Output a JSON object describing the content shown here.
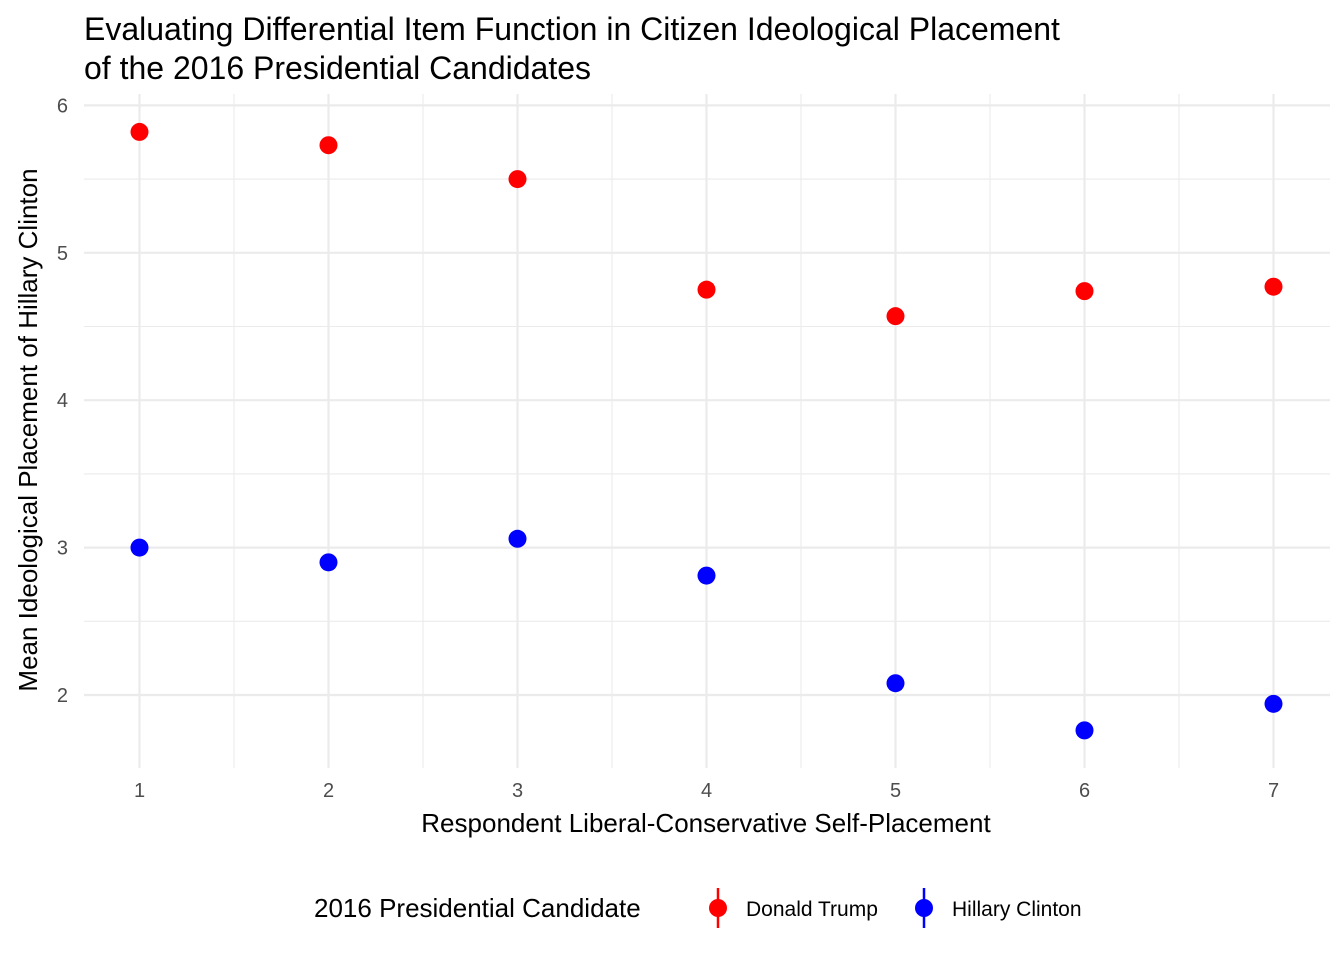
{
  "chart_data": {
    "type": "scatter",
    "title": "Evaluating Differential Item Function in Citizen Ideological Placement",
    "subtitle": "of the 2016 Presidential Candidates",
    "xlabel": "Respondent Liberal-Conservative Self-Placement",
    "ylabel": "Mean Ideological Placement of Hillary Clinton",
    "x": [
      1,
      2,
      3,
      4,
      5,
      6,
      7
    ],
    "xticks": [
      "1",
      "2",
      "3",
      "4",
      "5",
      "6",
      "7"
    ],
    "yticks": [
      "2",
      "3",
      "4",
      "5",
      "6"
    ],
    "xlim": [
      0.75,
      7.3
    ],
    "ylim": [
      1.53,
      6.07
    ],
    "grid": true,
    "legend": {
      "title": "2016 Presidential Candidate",
      "position": "bottom"
    },
    "series": [
      {
        "name": "Donald Trump",
        "color": "#ff0000",
        "values": [
          5.82,
          5.73,
          5.5,
          4.75,
          4.57,
          4.74,
          4.77
        ]
      },
      {
        "name": "Hillary Clinton",
        "color": "#0000ff",
        "values": [
          3.0,
          2.9,
          3.06,
          2.81,
          2.08,
          1.76,
          1.94
        ]
      }
    ]
  }
}
